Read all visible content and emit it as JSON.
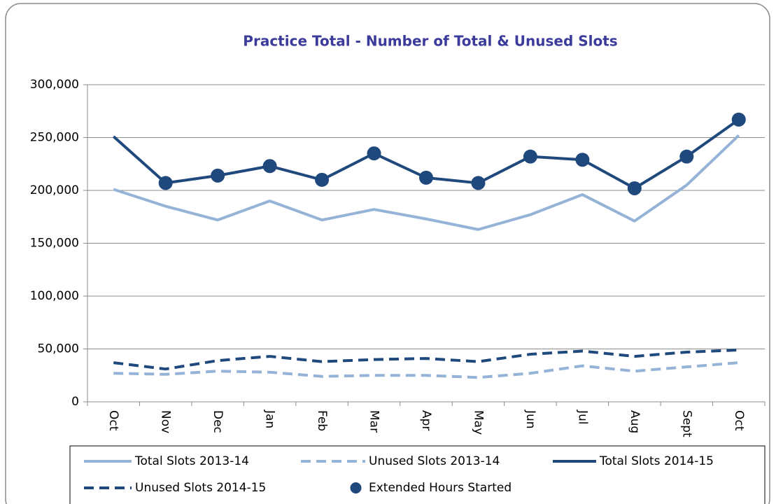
{
  "chart_data": {
    "type": "line",
    "title": "Practice Total - Number of Total & Unused Slots",
    "categories": [
      "Oct",
      "Nov",
      "Dec",
      "Jan",
      "Feb",
      "Mar",
      "Apr",
      "May",
      "Jun",
      "Jul",
      "Aug",
      "Sept",
      "Oct"
    ],
    "series": [
      {
        "name": "Total Slots 2013-14",
        "color": "#95b3d7",
        "style": "solid",
        "values": [
          201000,
          185000,
          172000,
          190000,
          172000,
          182000,
          173000,
          163000,
          177000,
          196000,
          171000,
          205000,
          252000
        ]
      },
      {
        "name": "Unused Slots 2013-14",
        "color": "#95b3d7",
        "style": "dashed",
        "values": [
          27000,
          26000,
          29000,
          28000,
          24000,
          25000,
          25000,
          23000,
          27000,
          34000,
          29000,
          33000,
          37000
        ]
      },
      {
        "name": "Total Slots 2014-15",
        "color": "#1f497d",
        "style": "solid",
        "values": [
          251000,
          207000,
          214000,
          223000,
          210000,
          235000,
          212000,
          207000,
          232000,
          229000,
          202000,
          232000,
          267000
        ]
      },
      {
        "name": "Unused Slots 2014-15",
        "color": "#1f497d",
        "style": "dashed",
        "values": [
          37000,
          31000,
          39000,
          43000,
          38000,
          40000,
          41000,
          38000,
          45000,
          48000,
          43000,
          47000,
          49000
        ]
      },
      {
        "name": "Extended Hours Started",
        "color": "#1f497d",
        "style": "markers",
        "values": [
          null,
          207000,
          214000,
          223000,
          210000,
          235000,
          212000,
          207000,
          232000,
          229000,
          202000,
          232000,
          267000
        ]
      }
    ],
    "ylim": [
      0,
      300000
    ],
    "yticks": [
      0,
      {
        "value": 50000,
        "label": "50,000"
      },
      {
        "value": 100000,
        "label": "100,000"
      },
      {
        "value": 150000,
        "label": "150,000"
      },
      {
        "value": 200000,
        "label": "200,000"
      },
      {
        "value": 250000,
        "label": "250,000"
      },
      {
        "value": 300000,
        "label": "300,000"
      }
    ],
    "grid": true,
    "legend": "bottom"
  }
}
